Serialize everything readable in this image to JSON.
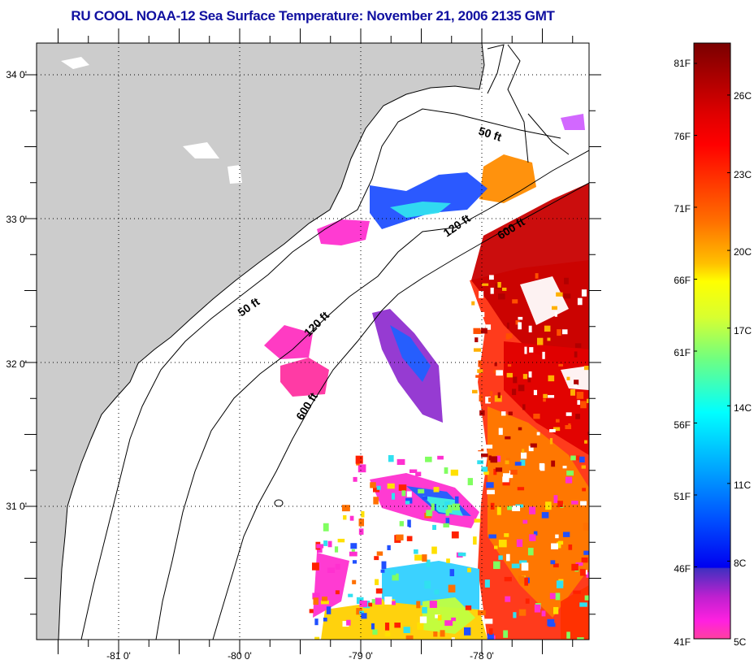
{
  "title": "RU COOL  NOAA-12  Sea Surface Temperature:  November 21, 2006 2135 GMT",
  "chart_data": {
    "type": "heatmap",
    "title": "RU COOL  NOAA-12  Sea Surface Temperature:  November 21, 2006 2135 GMT",
    "x_ticks": [
      {
        "value": -81,
        "label": "-81 0'"
      },
      {
        "value": -80,
        "label": "-80 0'"
      },
      {
        "value": -79,
        "label": "-79 0'"
      },
      {
        "value": -78,
        "label": "-78 0'"
      }
    ],
    "y_ticks": [
      {
        "value": 34,
        "label": "34 0'"
      },
      {
        "value": 33,
        "label": "33 0'"
      },
      {
        "value": 32,
        "label": "32 0'"
      },
      {
        "value": 31,
        "label": "31 0'"
      }
    ],
    "xlim": [
      -81.67,
      -77.12
    ],
    "ylim": [
      30.25,
      34.22
    ],
    "grid": "dotted",
    "contours": [
      {
        "depth": "50 ft",
        "labels": [
          "50 ft",
          "50 ft"
        ]
      },
      {
        "depth": "120 ft",
        "labels": [
          "120 ft",
          "120 ft"
        ]
      },
      {
        "depth": "600 ft",
        "labels": [
          "600 ft",
          "600 ft"
        ]
      }
    ],
    "colorbar": {
      "range_f": [
        41,
        83
      ],
      "fahrenheit_ticks": [
        {
          "value": 81,
          "label": "81F"
        },
        {
          "value": 76,
          "label": "76F"
        },
        {
          "value": 71,
          "label": "71F"
        },
        {
          "value": 66,
          "label": "66F"
        },
        {
          "value": 61,
          "label": "61F"
        },
        {
          "value": 56,
          "label": "56F"
        },
        {
          "value": 51,
          "label": "51F"
        },
        {
          "value": 46,
          "label": "46F"
        },
        {
          "value": 41,
          "label": "41F"
        }
      ],
      "celsius_ticks": [
        {
          "value": 26,
          "label": "26C"
        },
        {
          "value": 23,
          "label": "23C"
        },
        {
          "value": 20,
          "label": "20C"
        },
        {
          "value": 17,
          "label": "17C"
        },
        {
          "value": 14,
          "label": "14C"
        },
        {
          "value": 11,
          "label": "11C"
        },
        {
          "value": 8,
          "label": "8C"
        },
        {
          "value": 5,
          "label": "5C"
        }
      ]
    }
  },
  "colors": {
    "land": "#cccccc",
    "title": "#1010a0",
    "gulf_stream": "#c80000"
  }
}
